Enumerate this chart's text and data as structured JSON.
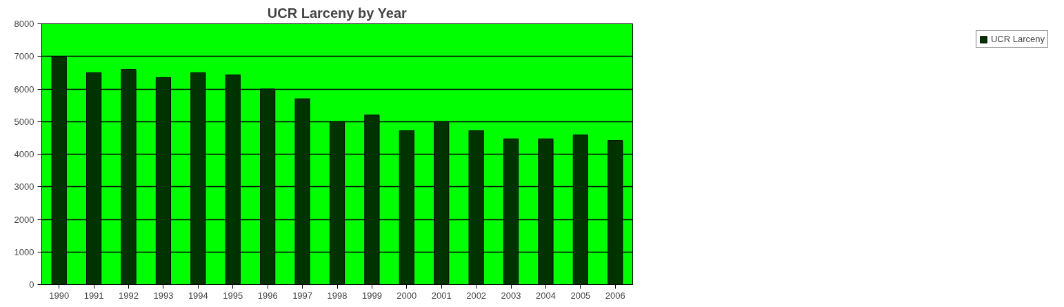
{
  "chart_data": {
    "type": "bar",
    "title": "UCR Larceny by Year",
    "categories": [
      "1990",
      "1991",
      "1992",
      "1993",
      "1994",
      "1995",
      "1996",
      "1997",
      "1998",
      "1999",
      "2000",
      "2001",
      "2002",
      "2003",
      "2004",
      "2005",
      "2006"
    ],
    "series": [
      {
        "name": "UCR Larceny",
        "color": "#003300",
        "values": [
          7000,
          6500,
          6600,
          6350,
          6500,
          6430,
          6000,
          5700,
          5000,
          5200,
          4720,
          5000,
          4720,
          4470,
          4470,
          4590,
          4420
        ]
      }
    ],
    "ylim": [
      0,
      8000
    ],
    "yticks": [
      0,
      1000,
      2000,
      3000,
      4000,
      5000,
      6000,
      7000,
      8000
    ],
    "grid": "y",
    "legend": "right"
  }
}
